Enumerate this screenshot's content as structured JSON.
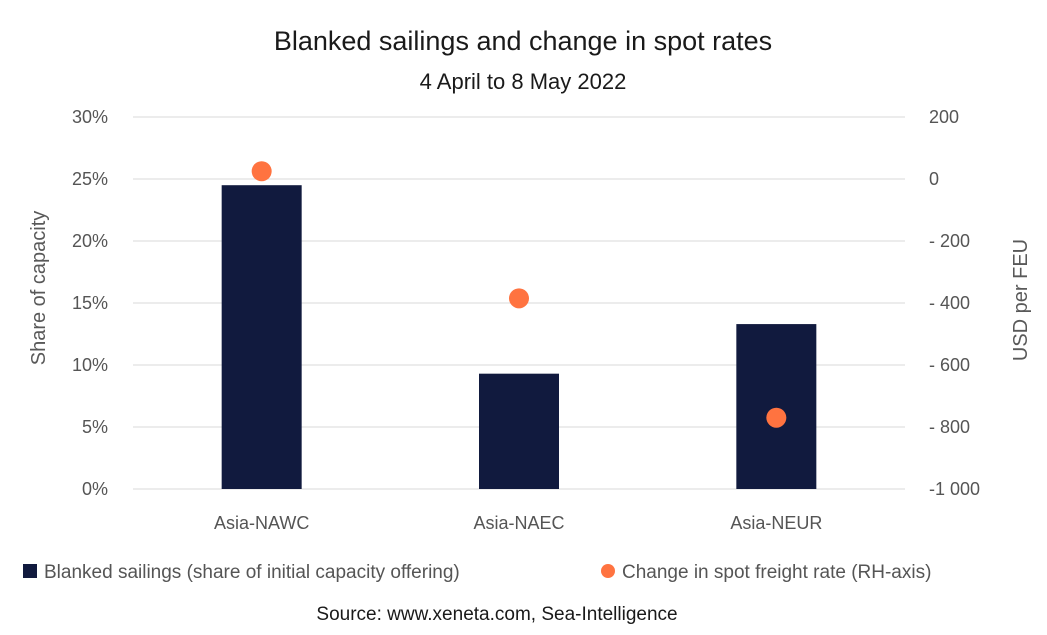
{
  "chart_data": {
    "type": "bar",
    "title": "Blanked sailings and change in spot rates",
    "subtitle": "4 April to 8 May 2022",
    "categories": [
      "Asia-NAWC",
      "Asia-NAEC",
      "Asia-NEUR"
    ],
    "series": [
      {
        "name": "Blanked sailings (share of initial capacity offering)",
        "type": "bar",
        "axis": "left",
        "values": [
          0.245,
          0.093,
          0.133
        ],
        "color": "#111a3e"
      },
      {
        "name": "Change in spot freight rate (RH-axis)",
        "type": "scatter",
        "axis": "right",
        "values": [
          25,
          -385,
          -770
        ],
        "color": "#ff7340"
      }
    ],
    "ylabel": "Share of capacity",
    "ylim": [
      0,
      0.3
    ],
    "yticks": [
      "0%",
      "5%",
      "10%",
      "15%",
      "20%",
      "25%",
      "30%"
    ],
    "y2label": "USD per FEU",
    "y2lim": [
      -1000,
      200
    ],
    "y2ticks": [
      "-1 000",
      "- 800",
      "- 600",
      "- 400",
      "- 200",
      "0",
      "200"
    ],
    "grid": true,
    "legend_position": "bottom",
    "source": "Source: www.xeneta.com, Sea-Intelligence"
  }
}
